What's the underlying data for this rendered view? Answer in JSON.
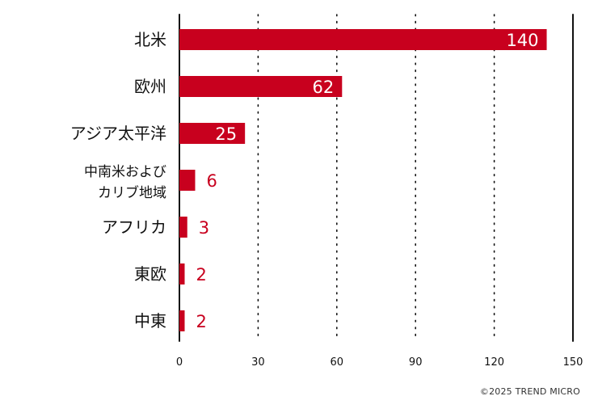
{
  "chart_data": {
    "type": "bar",
    "orientation": "horizontal",
    "categories": [
      "北米",
      "欧州",
      "アジア太平洋",
      "中南米および\nカリブ地域",
      "アフリカ",
      "東欧",
      "中東"
    ],
    "values": [
      140,
      62,
      25,
      6,
      3,
      2,
      2
    ],
    "xlim": [
      0,
      150
    ],
    "xticks": [
      0,
      30,
      60,
      90,
      120,
      150
    ],
    "grid": "vertical-dotted",
    "bar_color": "#c8001e"
  },
  "footer": {
    "copyright": "©2025 TREND MICRO"
  }
}
